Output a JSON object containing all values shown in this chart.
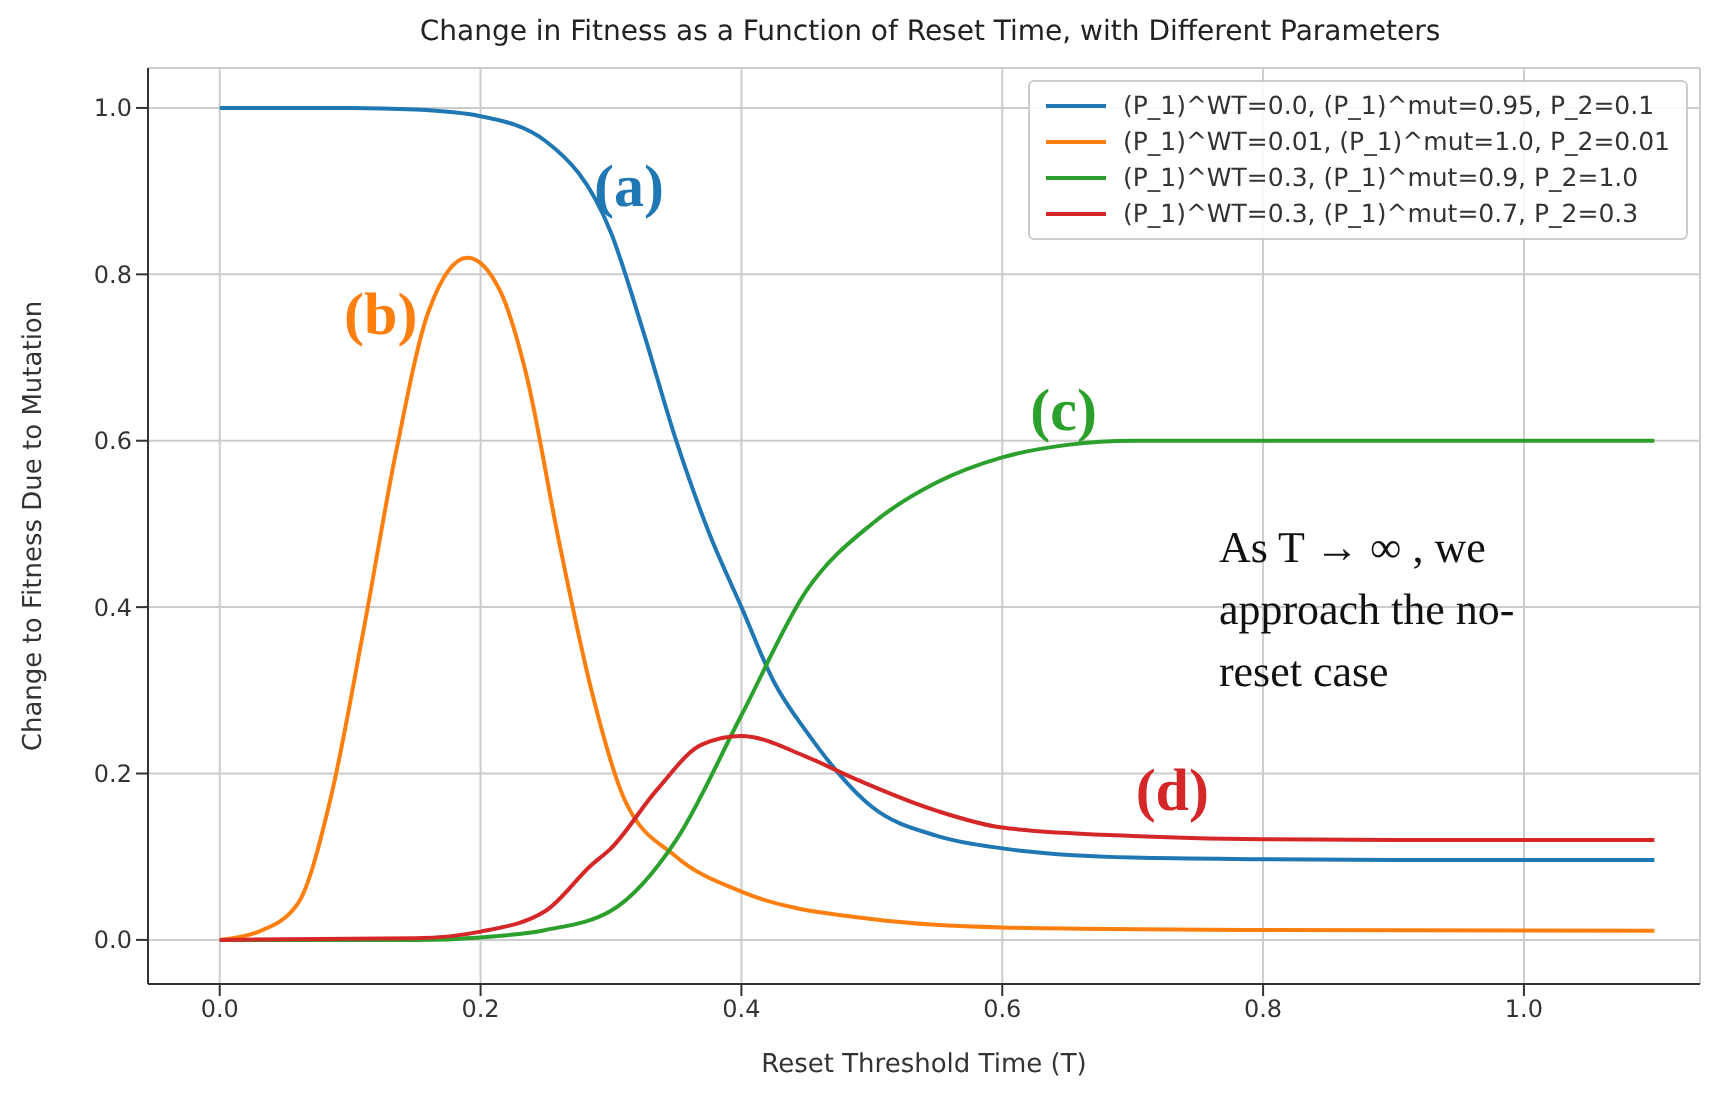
{
  "chart_data": {
    "type": "line",
    "title": "Change in Fitness as a Function of Reset Time, with Different Parameters",
    "xlabel": "Reset Threshold Time (T)",
    "ylabel": "Change to Fitness Due to Mutation",
    "xlim": [
      -0.055,
      1.135
    ],
    "ylim": [
      -0.053,
      1.048
    ],
    "xticks": [
      {
        "value": 0,
        "label": "0.0"
      },
      0.2,
      0.4,
      0.6,
      0.8,
      {
        "value": 1,
        "label": "1.0"
      }
    ],
    "yticks": [
      {
        "value": 0,
        "label": "0.0"
      },
      0.2,
      0.4,
      0.6,
      0.8,
      {
        "value": 1,
        "label": "1.0"
      }
    ],
    "grid": true,
    "legend": "top right",
    "line_style": "solid",
    "series": [
      {
        "name": "(P_1)^WT=0.0, (P_1)^mut=0.95, P_2=0.1",
        "color": "#1f77b4",
        "x": [
          0,
          0.1,
          0.15,
          0.2,
          0.25,
          0.3,
          0.325,
          0.35,
          0.375,
          0.4,
          0.425,
          0.45,
          0.5,
          0.55,
          0.6,
          0.7,
          0.8,
          0.9,
          1.0,
          1.1
        ],
        "values": [
          1.0,
          1.0,
          0.998,
          0.99,
          0.96,
          0.85,
          0.73,
          0.6,
          0.49,
          0.4,
          0.31,
          0.25,
          0.16,
          0.125,
          0.11,
          0.099,
          0.097,
          0.096,
          0.096,
          0.096
        ]
      },
      {
        "name": "(P_1)^WT=0.01, (P_1)^mut=1.0, P_2=0.01",
        "color": "#ff7f0e",
        "x": [
          0,
          0.03,
          0.06,
          0.085,
          0.11,
          0.135,
          0.16,
          0.19,
          0.215,
          0.235,
          0.26,
          0.285,
          0.31,
          0.35,
          0.4,
          0.5,
          0.6,
          0.8,
          1.1
        ],
        "values": [
          0.0,
          0.01,
          0.044,
          0.17,
          0.37,
          0.585,
          0.755,
          0.82,
          0.78,
          0.68,
          0.48,
          0.3,
          0.17,
          0.1,
          0.058,
          0.025,
          0.015,
          0.012,
          0.011
        ]
      },
      {
        "name": "(P_1)^WT=0.3, (P_1)^mut=0.9, P_2=1.0",
        "color": "#2ca02c",
        "x": [
          0,
          0.15,
          0.2,
          0.25,
          0.3,
          0.35,
          0.4,
          0.45,
          0.5,
          0.55,
          0.6,
          0.65,
          0.7,
          0.8,
          0.9,
          1.0,
          1.1
        ],
        "values": [
          0.0,
          0.0,
          0.003,
          0.012,
          0.035,
          0.12,
          0.27,
          0.42,
          0.5,
          0.55,
          0.58,
          0.595,
          0.6,
          0.6,
          0.6,
          0.6,
          0.6
        ]
      },
      {
        "name": "(P_1)^WT=0.3, (P_1)^mut=0.7, P_2=0.3",
        "color": "#d62728",
        "x": [
          0,
          0.15,
          0.2,
          0.25,
          0.285,
          0.3,
          0.335,
          0.37,
          0.4,
          0.45,
          0.485,
          0.55,
          0.6,
          0.7,
          0.8,
          0.9,
          1.0,
          1.1
        ],
        "values": [
          0.0,
          0.002,
          0.01,
          0.035,
          0.09,
          0.11,
          0.18,
          0.235,
          0.245,
          0.22,
          0.195,
          0.155,
          0.135,
          0.125,
          0.121,
          0.12,
          0.12,
          0.12
        ]
      }
    ],
    "annotations": [
      "(a)",
      "(b)",
      "(c)",
      "(d)",
      "As T → ∞ , we approach the no-reset case"
    ]
  }
}
